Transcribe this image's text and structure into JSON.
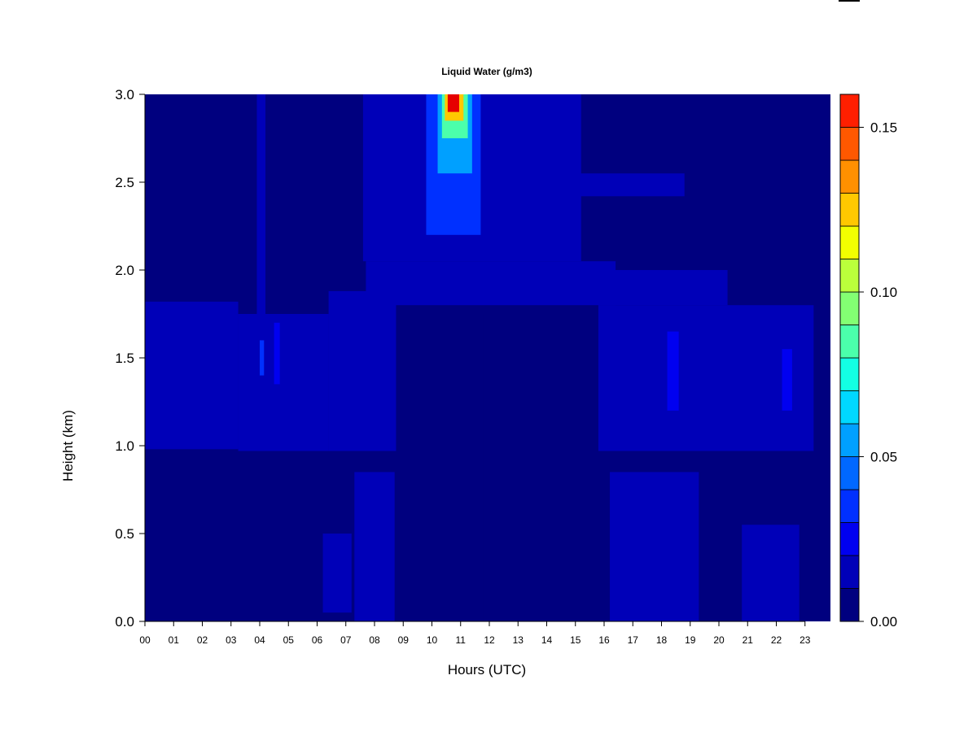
{
  "chart_data": {
    "type": "heatmap",
    "title": "Liquid Water (g/m3)",
    "xlabel": "Hours (UTC)",
    "ylabel": "Height (km)",
    "x_ticks": [
      "00",
      "01",
      "02",
      "03",
      "04",
      "05",
      "06",
      "07",
      "08",
      "09",
      "10",
      "11",
      "12",
      "13",
      "14",
      "15",
      "16",
      "17",
      "18",
      "19",
      "20",
      "21",
      "22",
      "23"
    ],
    "y_ticks": [
      "0.0",
      "0.5",
      "1.0",
      "1.5",
      "2.0",
      "2.5",
      "3.0"
    ],
    "xlim": [
      0,
      24
    ],
    "ylim": [
      0,
      3
    ],
    "colorbar": {
      "levels": [
        0.0,
        0.01,
        0.02,
        0.03,
        0.04,
        0.05,
        0.06,
        0.07,
        0.08,
        0.09,
        0.1,
        0.11,
        0.12,
        0.13,
        0.14,
        0.15,
        0.16
      ],
      "colors": [
        "#00007f",
        "#0000b8",
        "#0000f0",
        "#0030ff",
        "#0068ff",
        "#00a0ff",
        "#00d8ff",
        "#13ffe3",
        "#4bffab",
        "#83ff73",
        "#bbff3b",
        "#f2ff00",
        "#ffc800",
        "#ff9000",
        "#ff5800",
        "#ff1f00",
        "#e60000",
        "#7f0000"
      ],
      "tick_values": [
        0.0,
        0.05,
        0.1,
        0.15
      ],
      "tick_labels": [
        "0.00",
        "0.05",
        "0.10",
        "0.15"
      ]
    },
    "grid": false,
    "features": [
      {
        "x0": 0.0,
        "x1": 3.25,
        "y0": 0.98,
        "y1": 1.82,
        "value": 0.012
      },
      {
        "x0": 3.25,
        "x1": 6.4,
        "y0": 0.97,
        "y1": 1.75,
        "value": 0.013
      },
      {
        "x0": 6.4,
        "x1": 8.75,
        "y0": 0.97,
        "y1": 1.88,
        "value": 0.012
      },
      {
        "x0": 7.3,
        "x1": 8.7,
        "y0": 0.0,
        "y1": 0.85,
        "value": 0.011
      },
      {
        "x0": 6.2,
        "x1": 7.2,
        "y0": 0.05,
        "y1": 0.5,
        "value": 0.011
      },
      {
        "x0": 7.7,
        "x1": 16.4,
        "y0": 1.8,
        "y1": 2.05,
        "value": 0.011
      },
      {
        "x0": 7.6,
        "x1": 15.2,
        "y0": 2.05,
        "y1": 3.0,
        "value": 0.012
      },
      {
        "x0": 15.0,
        "x1": 18.8,
        "y0": 2.42,
        "y1": 2.55,
        "value": 0.011
      },
      {
        "x0": 15.8,
        "x1": 23.3,
        "y0": 0.97,
        "y1": 1.8,
        "value": 0.012
      },
      {
        "x0": 15.8,
        "x1": 20.3,
        "y0": 1.8,
        "y1": 2.0,
        "value": 0.011
      },
      {
        "x0": 16.2,
        "x1": 19.3,
        "y0": 0.0,
        "y1": 0.85,
        "value": 0.011
      },
      {
        "x0": 20.8,
        "x1": 22.8,
        "y0": 0.0,
        "y1": 0.55,
        "value": 0.011
      },
      {
        "x0": 3.9,
        "x1": 4.2,
        "y0": 0.97,
        "y1": 3.0,
        "value": 0.011
      },
      {
        "x0": 4.0,
        "x1": 4.15,
        "y0": 1.4,
        "y1": 1.6,
        "value": 0.03
      },
      {
        "x0": 4.5,
        "x1": 4.7,
        "y0": 1.35,
        "y1": 1.7,
        "value": 0.028
      },
      {
        "x0": 18.2,
        "x1": 18.6,
        "y0": 1.2,
        "y1": 1.65,
        "value": 0.026
      },
      {
        "x0": 22.2,
        "x1": 22.55,
        "y0": 1.2,
        "y1": 1.55,
        "value": 0.026
      },
      {
        "x0": 11.35,
        "x1": 11.8,
        "y0": 0.0,
        "y1": 1.75,
        "value": 0.0
      },
      {
        "x0": 9.8,
        "x1": 11.7,
        "y0": 2.2,
        "y1": 3.0,
        "value": 0.035
      },
      {
        "x0": 10.2,
        "x1": 11.4,
        "y0": 2.55,
        "y1": 3.0,
        "value": 0.05
      },
      {
        "x0": 10.35,
        "x1": 11.25,
        "y0": 2.75,
        "y1": 3.0,
        "value": 0.08
      },
      {
        "x0": 10.45,
        "x1": 11.1,
        "y0": 2.85,
        "y1": 3.0,
        "value": 0.12
      },
      {
        "x0": 10.55,
        "x1": 10.95,
        "y0": 2.9,
        "y1": 3.0,
        "value": 0.16
      }
    ]
  }
}
